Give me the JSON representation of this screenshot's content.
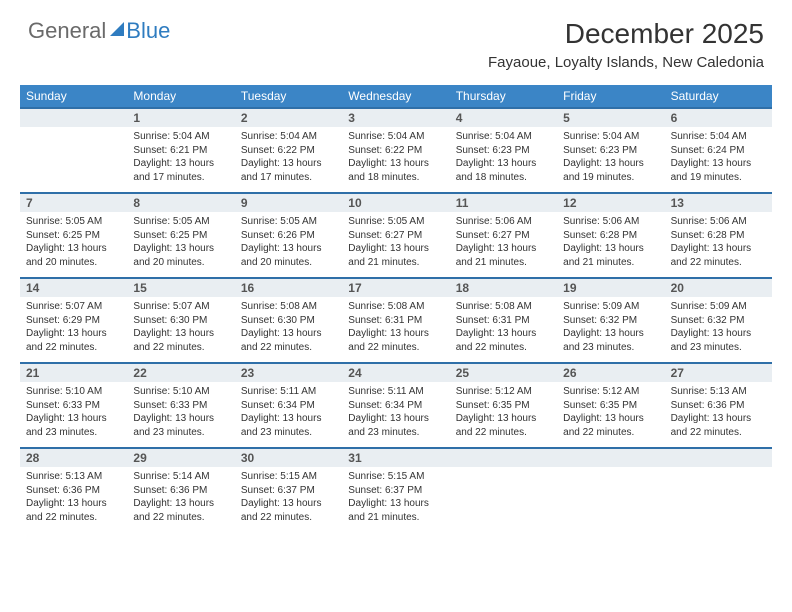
{
  "logo": {
    "part1": "General",
    "part2": "Blue"
  },
  "title": "December 2025",
  "location": "Fayaoue, Loyalty Islands, New Caledonia",
  "colors": {
    "header_bar": "#3b85c6",
    "daynum_bg": "#e9eef2",
    "rule": "#2f6fa8",
    "logo_blue": "#2f7cc0",
    "logo_gray": "#6a6a6a",
    "text": "#333333"
  },
  "weekdays": [
    "Sunday",
    "Monday",
    "Tuesday",
    "Wednesday",
    "Thursday",
    "Friday",
    "Saturday"
  ],
  "weeks": [
    [
      {
        "num": "",
        "sunrise": "",
        "sunset": "",
        "daylight": ""
      },
      {
        "num": "1",
        "sunrise": "Sunrise: 5:04 AM",
        "sunset": "Sunset: 6:21 PM",
        "daylight": "Daylight: 13 hours and 17 minutes."
      },
      {
        "num": "2",
        "sunrise": "Sunrise: 5:04 AM",
        "sunset": "Sunset: 6:22 PM",
        "daylight": "Daylight: 13 hours and 17 minutes."
      },
      {
        "num": "3",
        "sunrise": "Sunrise: 5:04 AM",
        "sunset": "Sunset: 6:22 PM",
        "daylight": "Daylight: 13 hours and 18 minutes."
      },
      {
        "num": "4",
        "sunrise": "Sunrise: 5:04 AM",
        "sunset": "Sunset: 6:23 PM",
        "daylight": "Daylight: 13 hours and 18 minutes."
      },
      {
        "num": "5",
        "sunrise": "Sunrise: 5:04 AM",
        "sunset": "Sunset: 6:23 PM",
        "daylight": "Daylight: 13 hours and 19 minutes."
      },
      {
        "num": "6",
        "sunrise": "Sunrise: 5:04 AM",
        "sunset": "Sunset: 6:24 PM",
        "daylight": "Daylight: 13 hours and 19 minutes."
      }
    ],
    [
      {
        "num": "7",
        "sunrise": "Sunrise: 5:05 AM",
        "sunset": "Sunset: 6:25 PM",
        "daylight": "Daylight: 13 hours and 20 minutes."
      },
      {
        "num": "8",
        "sunrise": "Sunrise: 5:05 AM",
        "sunset": "Sunset: 6:25 PM",
        "daylight": "Daylight: 13 hours and 20 minutes."
      },
      {
        "num": "9",
        "sunrise": "Sunrise: 5:05 AM",
        "sunset": "Sunset: 6:26 PM",
        "daylight": "Daylight: 13 hours and 20 minutes."
      },
      {
        "num": "10",
        "sunrise": "Sunrise: 5:05 AM",
        "sunset": "Sunset: 6:27 PM",
        "daylight": "Daylight: 13 hours and 21 minutes."
      },
      {
        "num": "11",
        "sunrise": "Sunrise: 5:06 AM",
        "sunset": "Sunset: 6:27 PM",
        "daylight": "Daylight: 13 hours and 21 minutes."
      },
      {
        "num": "12",
        "sunrise": "Sunrise: 5:06 AM",
        "sunset": "Sunset: 6:28 PM",
        "daylight": "Daylight: 13 hours and 21 minutes."
      },
      {
        "num": "13",
        "sunrise": "Sunrise: 5:06 AM",
        "sunset": "Sunset: 6:28 PM",
        "daylight": "Daylight: 13 hours and 22 minutes."
      }
    ],
    [
      {
        "num": "14",
        "sunrise": "Sunrise: 5:07 AM",
        "sunset": "Sunset: 6:29 PM",
        "daylight": "Daylight: 13 hours and 22 minutes."
      },
      {
        "num": "15",
        "sunrise": "Sunrise: 5:07 AM",
        "sunset": "Sunset: 6:30 PM",
        "daylight": "Daylight: 13 hours and 22 minutes."
      },
      {
        "num": "16",
        "sunrise": "Sunrise: 5:08 AM",
        "sunset": "Sunset: 6:30 PM",
        "daylight": "Daylight: 13 hours and 22 minutes."
      },
      {
        "num": "17",
        "sunrise": "Sunrise: 5:08 AM",
        "sunset": "Sunset: 6:31 PM",
        "daylight": "Daylight: 13 hours and 22 minutes."
      },
      {
        "num": "18",
        "sunrise": "Sunrise: 5:08 AM",
        "sunset": "Sunset: 6:31 PM",
        "daylight": "Daylight: 13 hours and 22 minutes."
      },
      {
        "num": "19",
        "sunrise": "Sunrise: 5:09 AM",
        "sunset": "Sunset: 6:32 PM",
        "daylight": "Daylight: 13 hours and 23 minutes."
      },
      {
        "num": "20",
        "sunrise": "Sunrise: 5:09 AM",
        "sunset": "Sunset: 6:32 PM",
        "daylight": "Daylight: 13 hours and 23 minutes."
      }
    ],
    [
      {
        "num": "21",
        "sunrise": "Sunrise: 5:10 AM",
        "sunset": "Sunset: 6:33 PM",
        "daylight": "Daylight: 13 hours and 23 minutes."
      },
      {
        "num": "22",
        "sunrise": "Sunrise: 5:10 AM",
        "sunset": "Sunset: 6:33 PM",
        "daylight": "Daylight: 13 hours and 23 minutes."
      },
      {
        "num": "23",
        "sunrise": "Sunrise: 5:11 AM",
        "sunset": "Sunset: 6:34 PM",
        "daylight": "Daylight: 13 hours and 23 minutes."
      },
      {
        "num": "24",
        "sunrise": "Sunrise: 5:11 AM",
        "sunset": "Sunset: 6:34 PM",
        "daylight": "Daylight: 13 hours and 23 minutes."
      },
      {
        "num": "25",
        "sunrise": "Sunrise: 5:12 AM",
        "sunset": "Sunset: 6:35 PM",
        "daylight": "Daylight: 13 hours and 22 minutes."
      },
      {
        "num": "26",
        "sunrise": "Sunrise: 5:12 AM",
        "sunset": "Sunset: 6:35 PM",
        "daylight": "Daylight: 13 hours and 22 minutes."
      },
      {
        "num": "27",
        "sunrise": "Sunrise: 5:13 AM",
        "sunset": "Sunset: 6:36 PM",
        "daylight": "Daylight: 13 hours and 22 minutes."
      }
    ],
    [
      {
        "num": "28",
        "sunrise": "Sunrise: 5:13 AM",
        "sunset": "Sunset: 6:36 PM",
        "daylight": "Daylight: 13 hours and 22 minutes."
      },
      {
        "num": "29",
        "sunrise": "Sunrise: 5:14 AM",
        "sunset": "Sunset: 6:36 PM",
        "daylight": "Daylight: 13 hours and 22 minutes."
      },
      {
        "num": "30",
        "sunrise": "Sunrise: 5:15 AM",
        "sunset": "Sunset: 6:37 PM",
        "daylight": "Daylight: 13 hours and 22 minutes."
      },
      {
        "num": "31",
        "sunrise": "Sunrise: 5:15 AM",
        "sunset": "Sunset: 6:37 PM",
        "daylight": "Daylight: 13 hours and 21 minutes."
      },
      {
        "num": "",
        "sunrise": "",
        "sunset": "",
        "daylight": ""
      },
      {
        "num": "",
        "sunrise": "",
        "sunset": "",
        "daylight": ""
      },
      {
        "num": "",
        "sunrise": "",
        "sunset": "",
        "daylight": ""
      }
    ]
  ]
}
